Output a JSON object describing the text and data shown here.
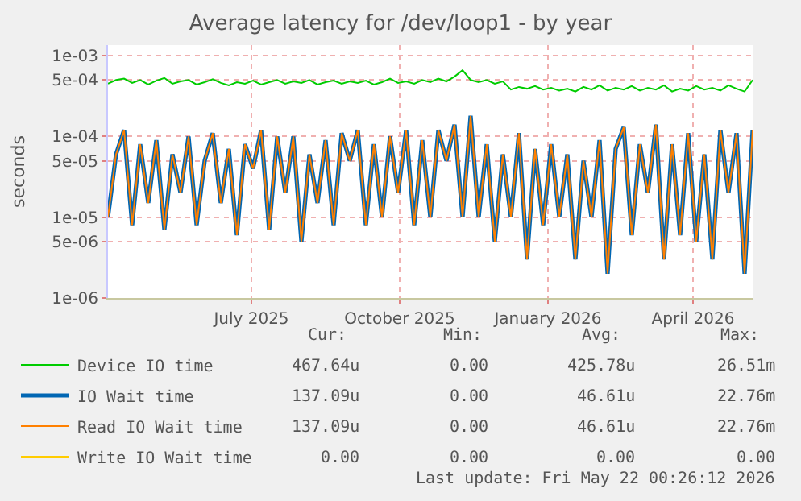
{
  "chart_data": {
    "type": "line",
    "title": "Average latency for /dev/loop1 - by year",
    "ylabel": "seconds",
    "x": [
      "2025-04-17",
      "2025-04-22",
      "2025-04-27",
      "2025-05-02",
      "2025-05-07",
      "2025-05-12",
      "2025-05-17",
      "2025-05-22",
      "2025-05-27",
      "2025-06-01",
      "2025-06-06",
      "2025-06-11",
      "2025-06-16",
      "2025-06-21",
      "2025-06-26",
      "2025-07-01",
      "2025-07-06",
      "2025-07-11",
      "2025-07-16",
      "2025-07-21",
      "2025-07-26",
      "2025-07-31",
      "2025-08-05",
      "2025-08-10",
      "2025-08-15",
      "2025-08-20",
      "2025-08-25",
      "2025-08-30",
      "2025-09-04",
      "2025-09-09",
      "2025-09-14",
      "2025-09-19",
      "2025-09-24",
      "2025-09-29",
      "2025-10-04",
      "2025-10-09",
      "2025-10-14",
      "2025-10-19",
      "2025-10-24",
      "2025-10-29",
      "2025-11-03",
      "2025-11-08",
      "2025-11-13",
      "2025-11-18",
      "2025-11-23",
      "2025-11-28",
      "2025-12-03",
      "2025-12-08",
      "2025-12-13",
      "2025-12-18",
      "2025-12-23",
      "2025-12-28",
      "2026-01-02",
      "2026-01-07",
      "2026-01-12",
      "2026-01-17",
      "2026-01-22",
      "2026-01-27",
      "2026-02-01",
      "2026-02-06",
      "2026-02-11",
      "2026-02-16",
      "2026-02-21",
      "2026-02-26",
      "2026-03-03",
      "2026-03-08",
      "2026-03-13",
      "2026-03-18",
      "2026-03-23",
      "2026-03-28",
      "2026-04-02",
      "2026-04-07",
      "2026-04-12",
      "2026-04-17",
      "2026-04-22",
      "2026-04-27",
      "2026-05-02",
      "2026-05-07",
      "2026-05-12",
      "2026-05-17",
      "2026-05-22"
    ],
    "series": [
      {
        "name": "Device IO time",
        "color": "#00cc00",
        "values": [
          0.00045,
          0.0005,
          0.00052,
          0.00046,
          0.0005,
          0.00044,
          0.00049,
          0.00053,
          0.00045,
          0.00048,
          0.0005,
          0.00044,
          0.00047,
          0.00051,
          0.00046,
          0.00043,
          0.00047,
          0.00045,
          0.00049,
          0.00044,
          0.00047,
          0.0005,
          0.00045,
          0.00048,
          0.00046,
          0.0005,
          0.00044,
          0.00047,
          0.00049,
          0.00045,
          0.00048,
          0.00046,
          0.00049,
          0.00044,
          0.00047,
          0.00052,
          0.00046,
          0.00048,
          0.00045,
          0.0005,
          0.00047,
          0.00052,
          0.00048,
          0.00055,
          0.00066,
          0.0005,
          0.00047,
          0.0005,
          0.00045,
          0.00048,
          0.00038,
          0.00041,
          0.00039,
          0.00042,
          0.00038,
          0.0004,
          0.00037,
          0.00039,
          0.00036,
          0.00041,
          0.00038,
          0.00043,
          0.00037,
          0.0004,
          0.00038,
          0.00042,
          0.00037,
          0.0004,
          0.00038,
          0.00043,
          0.00036,
          0.00039,
          0.00037,
          0.00042,
          0.00038,
          0.0004,
          0.00037,
          0.00043,
          0.00039,
          0.00036,
          0.0005
        ]
      },
      {
        "name": "IO Wait time",
        "color": "#0066b3",
        "values": [
          1e-05,
          6e-05,
          0.00012,
          8e-06,
          8e-05,
          1.5e-05,
          9e-05,
          7e-06,
          6e-05,
          2e-05,
          0.0001,
          8e-06,
          5e-05,
          0.00011,
          1.5e-05,
          7e-05,
          6e-06,
          8e-05,
          4e-05,
          0.00012,
          7e-06,
          0.0001,
          2e-05,
          0.0001,
          5e-06,
          6e-05,
          1.5e-05,
          9e-05,
          8e-06,
          0.00011,
          5e-05,
          0.00012,
          8e-06,
          8e-05,
          1e-05,
          0.0001,
          2e-05,
          0.00012,
          8e-06,
          9e-05,
          1e-05,
          0.00012,
          5e-05,
          0.00014,
          1e-05,
          0.00018,
          1e-05,
          8e-05,
          5e-06,
          6e-05,
          1e-05,
          0.00011,
          3e-06,
          7e-05,
          8e-06,
          8e-05,
          1e-05,
          6e-05,
          3e-06,
          5e-05,
          1e-05,
          9e-05,
          2e-06,
          7e-05,
          0.00013,
          6e-06,
          8e-05,
          2e-05,
          0.00014,
          3e-06,
          8e-05,
          6e-06,
          0.00011,
          5e-06,
          6e-05,
          3e-06,
          0.00012,
          2e-05,
          0.00011,
          2e-06,
          0.00012
        ]
      },
      {
        "name": "Read IO Wait time",
        "color": "#ff8000",
        "values": [
          1e-05,
          6e-05,
          0.00012,
          8e-06,
          8e-05,
          1.5e-05,
          9e-05,
          7e-06,
          6e-05,
          2e-05,
          0.0001,
          8e-06,
          5e-05,
          0.00011,
          1.5e-05,
          7e-05,
          6e-06,
          8e-05,
          4e-05,
          0.00012,
          7e-06,
          0.0001,
          2e-05,
          0.0001,
          5e-06,
          6e-05,
          1.5e-05,
          9e-05,
          8e-06,
          0.00011,
          5e-05,
          0.00012,
          8e-06,
          8e-05,
          1e-05,
          0.0001,
          2e-05,
          0.00012,
          8e-06,
          9e-05,
          1e-05,
          0.00012,
          5e-05,
          0.00014,
          1e-05,
          0.00018,
          1e-05,
          8e-05,
          5e-06,
          6e-05,
          1e-05,
          0.00011,
          3e-06,
          7e-05,
          8e-06,
          8e-05,
          1e-05,
          6e-05,
          3e-06,
          5e-05,
          1e-05,
          9e-05,
          2e-06,
          7e-05,
          0.00013,
          6e-06,
          8e-05,
          2e-05,
          0.00014,
          3e-06,
          8e-05,
          6e-06,
          0.00011,
          5e-06,
          6e-05,
          3e-06,
          0.00012,
          2e-05,
          0.00011,
          2e-06,
          0.00012
        ]
      },
      {
        "name": "Write IO Wait time",
        "color": "#ffcc00",
        "values": [
          null,
          null,
          null,
          null,
          null,
          null,
          null,
          null,
          null,
          null,
          null,
          null,
          null,
          null,
          null,
          null,
          null,
          null,
          null,
          null,
          null,
          null,
          null,
          null,
          null,
          null,
          null,
          null,
          null,
          null,
          null,
          null,
          null,
          null,
          null,
          null,
          null,
          null,
          null,
          null,
          null,
          null,
          null,
          null,
          null,
          null,
          null,
          null,
          null,
          null,
          null,
          null,
          null,
          null,
          null,
          null,
          null,
          null,
          null,
          null,
          null,
          null,
          null,
          null,
          null,
          null,
          null,
          null,
          null,
          null,
          null,
          null,
          null,
          null,
          null,
          null,
          null,
          null,
          null,
          null,
          null
        ]
      }
    ],
    "log": "y",
    "ylim": [
      1e-06,
      0.00135
    ],
    "yticks": [
      {
        "value": 1e-06,
        "label": "1e-06"
      },
      {
        "value": 5e-06,
        "label": "5e-06"
      },
      {
        "value": 1e-05,
        "label": "1e-05"
      },
      {
        "value": 5e-05,
        "label": "5e-05"
      },
      {
        "value": 0.0001,
        "label": "1e-04"
      },
      {
        "value": 0.0005,
        "label": "5e-04"
      },
      {
        "value": 0.001,
        "label": "1e-03"
      }
    ],
    "xlim": [
      "2025-04-17",
      "2026-05-22"
    ],
    "xticks": [
      {
        "value": "2025-07-15",
        "label": "July 2025"
      },
      {
        "value": "2025-10-15",
        "label": "October 2025"
      },
      {
        "value": "2026-01-15",
        "label": "January 2026"
      },
      {
        "value": "2026-04-15",
        "label": "April 2026"
      }
    ],
    "grid": true,
    "legend": "bottom left",
    "marker": "none",
    "line_style": "solid",
    "annotations": [
      "Cur:",
      "Min:",
      "Avg:",
      "Max:",
      "467.64u",
      "0.00",
      "425.78u",
      "26.51m",
      "137.09u",
      "0.00",
      "46.61u",
      "22.76m",
      "137.09u",
      "0.00",
      "46.61u",
      "22.76m",
      "0.00",
      "0.00",
      "0.00",
      "0.00",
      "Last update: Fri May 22 00:26:12 2026"
    ]
  }
}
